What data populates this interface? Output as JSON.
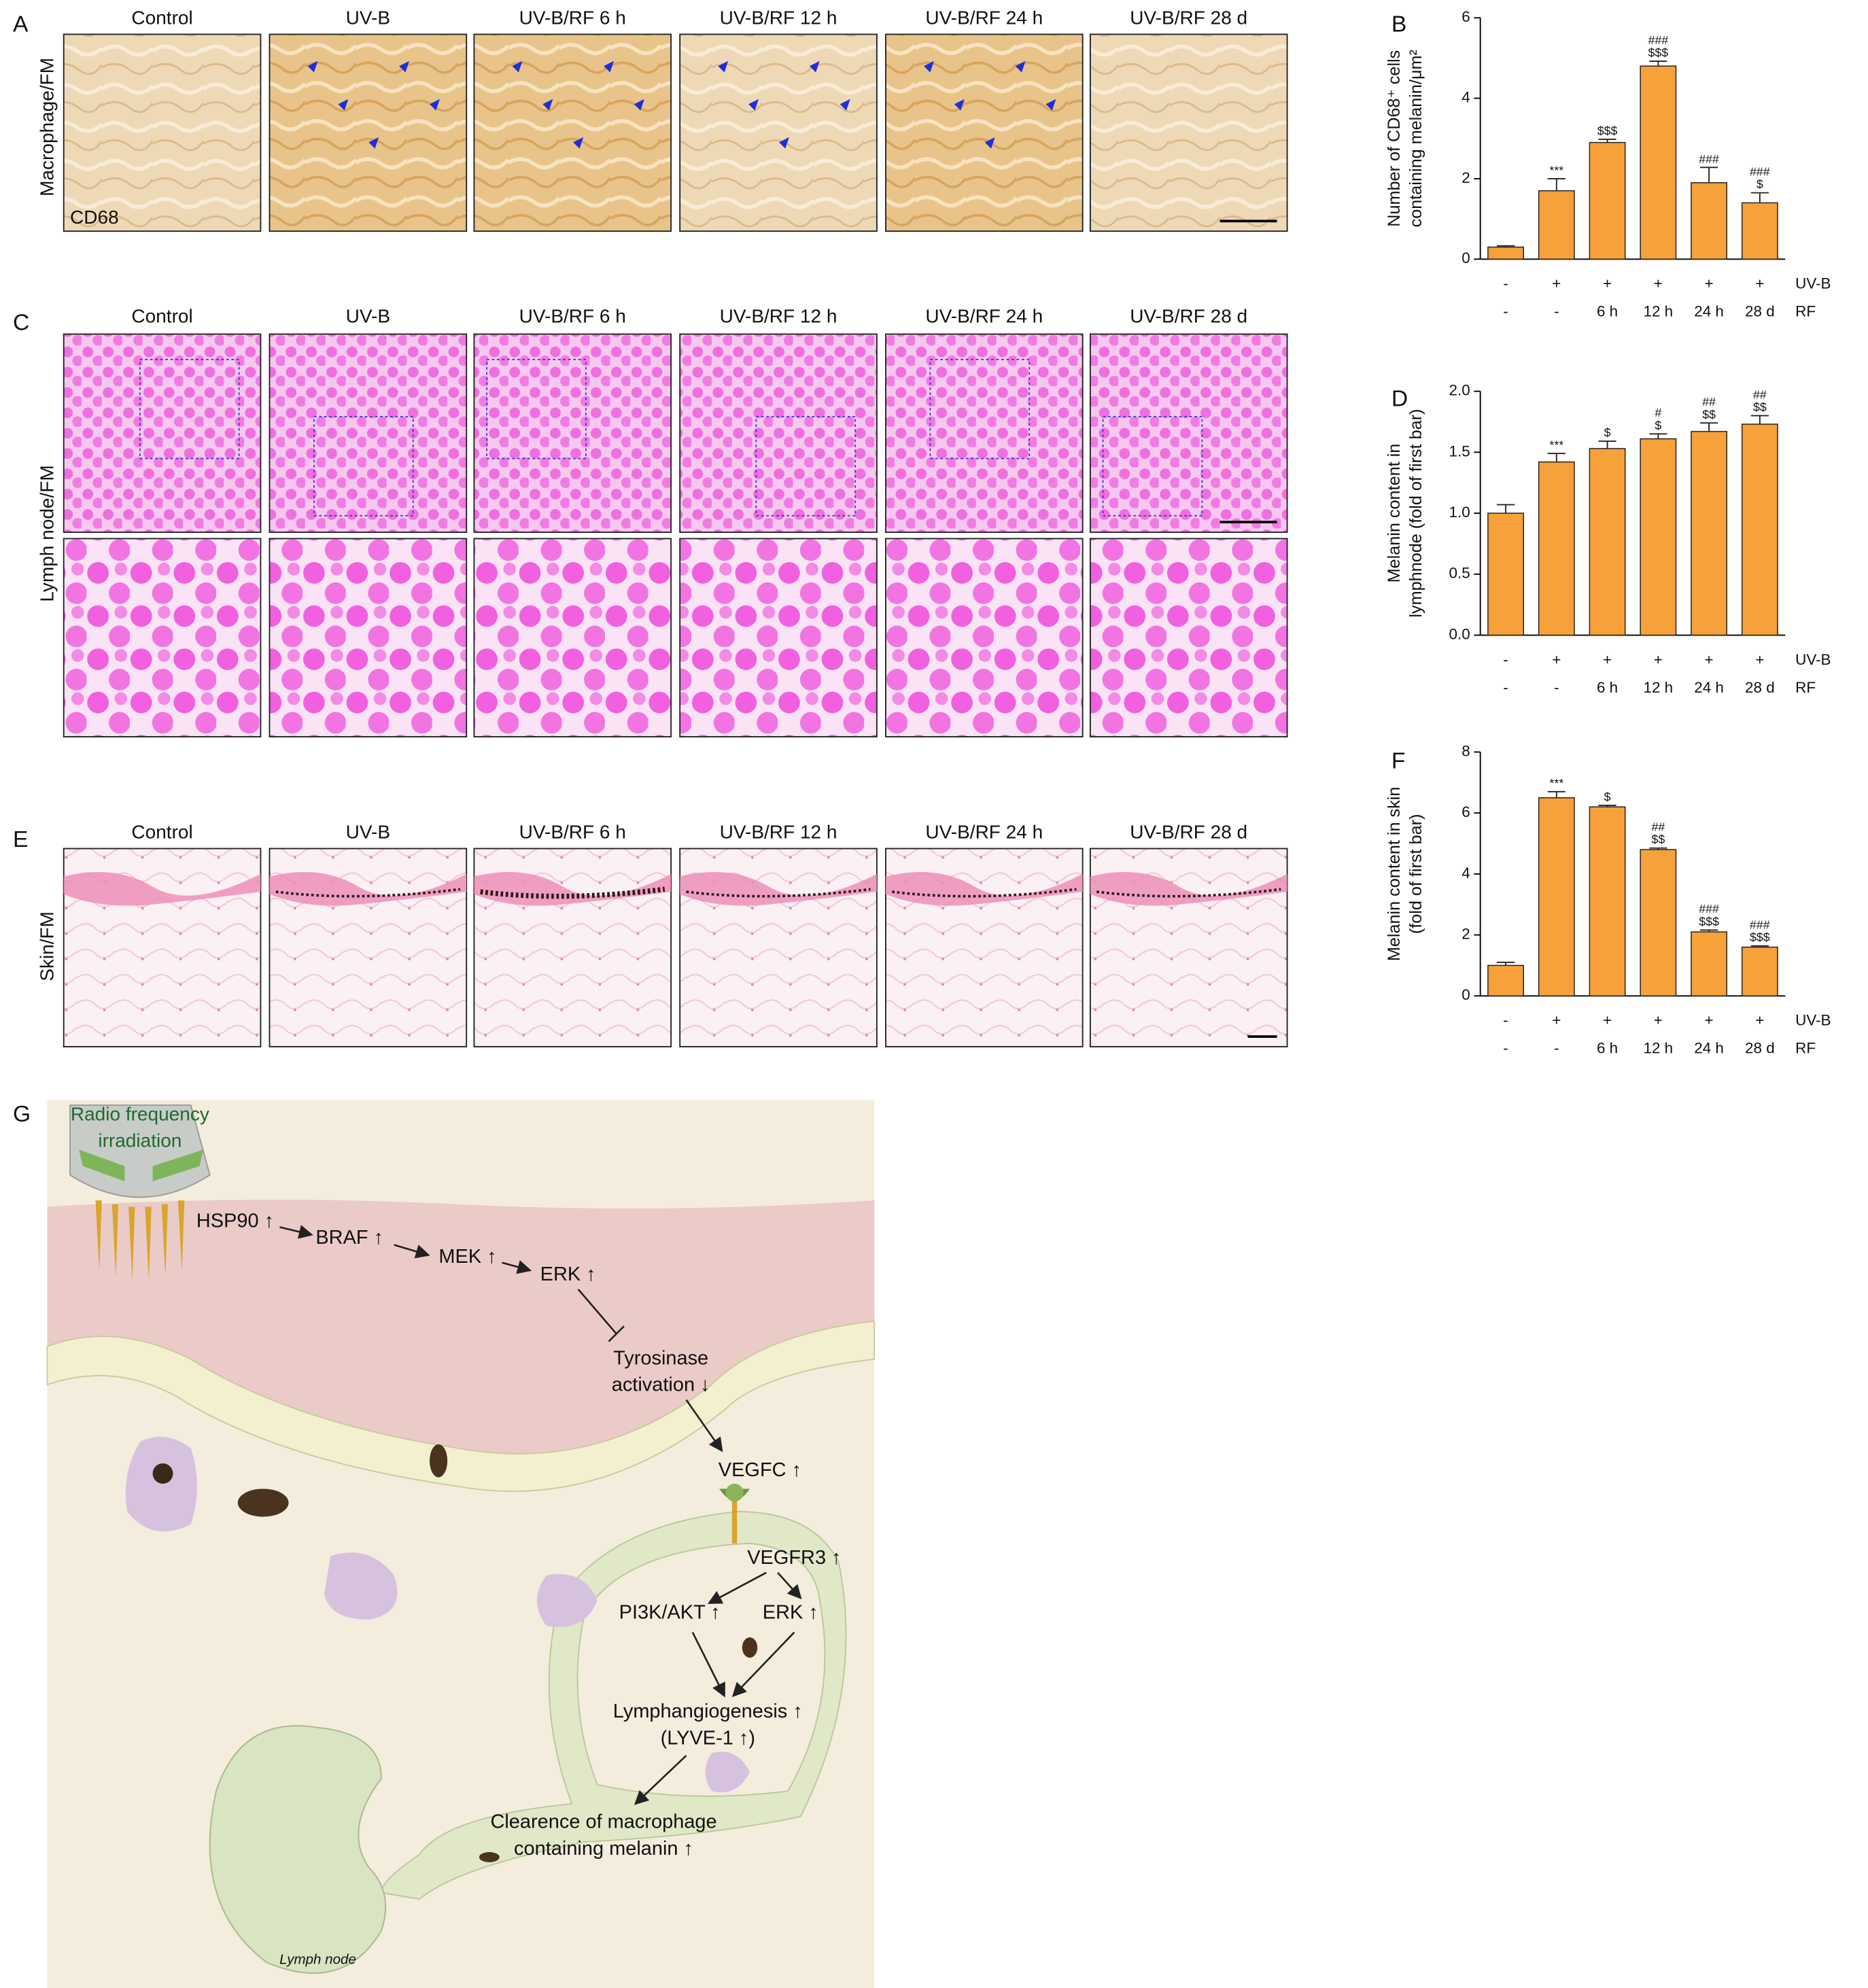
{
  "panels": {
    "A": {
      "letter": "A",
      "row_label": "Macrophage/FM",
      "inset_label": "CD68",
      "column_titles": [
        "Control",
        "UV-B",
        "UV-B/RF 6 h",
        "UV-B/RF 12 h",
        "UV-B/RF 24 h",
        "UV-B/RF 28 d"
      ]
    },
    "C": {
      "letter": "C",
      "row_label": "Lymph node/FM",
      "column_titles": [
        "Control",
        "UV-B",
        "UV-B/RF 6 h",
        "UV-B/RF 12 h",
        "UV-B/RF 24 h",
        "UV-B/RF 28 d"
      ]
    },
    "E": {
      "letter": "E",
      "row_label": "Skin/FM",
      "column_titles": [
        "Control",
        "UV-B",
        "UV-B/RF 6 h",
        "UV-B/RF 12 h",
        "UV-B/RF 24 h",
        "UV-B/RF 28 d"
      ]
    }
  },
  "chart_data": [
    {
      "type": "bar",
      "panel": "B",
      "ylabel": [
        "Number of CD68⁺ cells",
        "containing melanin/μm²"
      ],
      "rows": [
        {
          "name": "UV-B",
          "labels": [
            "-",
            "+",
            "+",
            "+",
            "+",
            "+"
          ]
        },
        {
          "name": "RF",
          "labels": [
            "-",
            "-",
            "6 h",
            "12 h",
            "24 h",
            "28 d"
          ]
        }
      ],
      "values": [
        0.3,
        1.7,
        2.9,
        4.8,
        1.9,
        1.4
      ],
      "errors": [
        0.03,
        0.3,
        0.08,
        0.12,
        0.38,
        0.25
      ],
      "sig_labels": [
        [],
        [
          "***"
        ],
        [
          "$$$"
        ],
        [
          "###",
          "$$$"
        ],
        [
          "###"
        ],
        [
          "###",
          "$"
        ]
      ],
      "color": "#f7a13a",
      "ylim": [
        0,
        6
      ],
      "yticks": [
        0,
        2,
        4,
        6
      ]
    },
    {
      "type": "bar",
      "panel": "D",
      "ylabel": [
        "Melanin content in",
        "lymphnode (fold of first bar)"
      ],
      "rows": [
        {
          "name": "UV-B",
          "labels": [
            "-",
            "+",
            "+",
            "+",
            "+",
            "+"
          ]
        },
        {
          "name": "RF",
          "labels": [
            "-",
            "-",
            "6 h",
            "12 h",
            "24 h",
            "28 d"
          ]
        }
      ],
      "values": [
        1.0,
        1.42,
        1.53,
        1.61,
        1.67,
        1.73
      ],
      "errors": [
        0.07,
        0.07,
        0.06,
        0.04,
        0.07,
        0.07
      ],
      "sig_labels": [
        [],
        [
          "***"
        ],
        [
          "$"
        ],
        [
          "#",
          "$"
        ],
        [
          "##",
          "$$"
        ],
        [
          "##",
          "$$"
        ]
      ],
      "color": "#f7a13a",
      "ylim": [
        0,
        2
      ],
      "yticks": [
        {
          "value": 0,
          "label": "0.0"
        },
        {
          "value": 0.5,
          "label": "0.5"
        },
        {
          "value": 1,
          "label": "1.0"
        },
        {
          "value": 1.5,
          "label": "1.5"
        },
        {
          "value": 2,
          "label": "2.0"
        }
      ]
    },
    {
      "type": "bar",
      "panel": "F",
      "ylabel": [
        "Melanin content in skin",
        "(fold of first bar)"
      ],
      "rows": [
        {
          "name": "UV-B",
          "labels": [
            "-",
            "+",
            "+",
            "+",
            "+",
            "+"
          ]
        },
        {
          "name": "RF",
          "labels": [
            "-",
            "-",
            "6 h",
            "12 h",
            "24 h",
            "28 d"
          ]
        }
      ],
      "values": [
        1.0,
        6.5,
        6.2,
        4.8,
        2.1,
        1.6
      ],
      "errors": [
        0.1,
        0.2,
        0.05,
        0.05,
        0.06,
        0.04
      ],
      "sig_labels": [
        [],
        [
          "***"
        ],
        [
          "$"
        ],
        [
          "##",
          "$$"
        ],
        [
          "###",
          "$$$"
        ],
        [
          "###",
          "$$$"
        ]
      ],
      "color": "#f7a13a",
      "ylim": [
        0,
        8
      ],
      "yticks": [
        0,
        2,
        4,
        6,
        8
      ]
    }
  ],
  "diagram": {
    "letter": "G",
    "nodes": [
      {
        "lines": [
          "Radio frequency",
          "irradiation"
        ]
      },
      {
        "lines": [
          "HSP90 ↑"
        ]
      },
      {
        "lines": [
          "BRAF ↑"
        ]
      },
      {
        "lines": [
          "MEK ↑"
        ]
      },
      {
        "lines": [
          "ERK ↑"
        ]
      },
      {
        "lines": [
          "Tyrosinase",
          "activation ↓"
        ]
      },
      {
        "lines": [
          "VEGFC ↑"
        ]
      },
      {
        "lines": [
          "VEGFR3 ↑"
        ]
      },
      {
        "lines": [
          "PI3K/AKT ↑"
        ]
      },
      {
        "lines": [
          "ERK ↑"
        ]
      },
      {
        "lines": [
          "Lymphangiogenesis ↑",
          "(LYVE-1 ↑)"
        ]
      },
      {
        "lines": [
          "Clearence of macrophage",
          "containing melanin ↑"
        ]
      },
      {
        "lines": [
          "Lymph node"
        ]
      }
    ]
  }
}
